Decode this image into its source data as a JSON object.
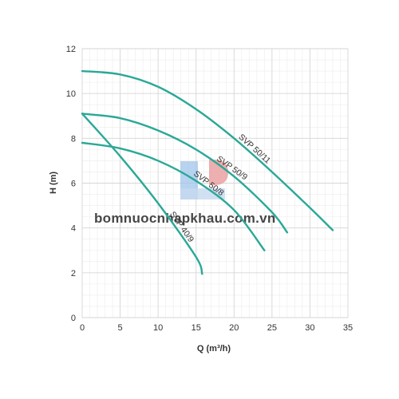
{
  "chart_data": {
    "type": "line",
    "xlabel": "Q (m³/h)",
    "ylabel": "H (m)",
    "xlim": [
      0,
      35
    ],
    "ylim": [
      0,
      12
    ],
    "x_ticks": [
      "0",
      "5",
      "10",
      "15",
      "20",
      "25",
      "30",
      "35"
    ],
    "y_ticks": [
      "0",
      "2",
      "4",
      "6",
      "8",
      "10",
      "12"
    ],
    "grid": true,
    "line_color": "#2aa897",
    "series": [
      {
        "name": "SVP 50/11",
        "x": [
          0,
          5,
          10,
          15,
          20,
          25,
          30,
          33
        ],
        "y": [
          11.0,
          10.85,
          10.3,
          9.3,
          8.0,
          6.5,
          4.9,
          3.9
        ]
      },
      {
        "name": "SVP 50/9",
        "x": [
          0,
          5,
          10,
          15,
          20,
          25,
          27
        ],
        "y": [
          9.1,
          8.9,
          8.35,
          7.5,
          6.3,
          4.7,
          3.8
        ]
      },
      {
        "name": "SVP 50/8",
        "x": [
          0,
          5,
          10,
          15,
          20,
          24
        ],
        "y": [
          7.8,
          7.55,
          7.0,
          6.1,
          4.8,
          3.0
        ]
      },
      {
        "name": "SVP 40/9",
        "x": [
          0,
          5,
          10,
          15,
          15.8
        ],
        "y": [
          9.1,
          7.2,
          5.1,
          2.7,
          1.95
        ]
      }
    ],
    "watermark": "bomnuocnhapkhau.com.vn"
  }
}
